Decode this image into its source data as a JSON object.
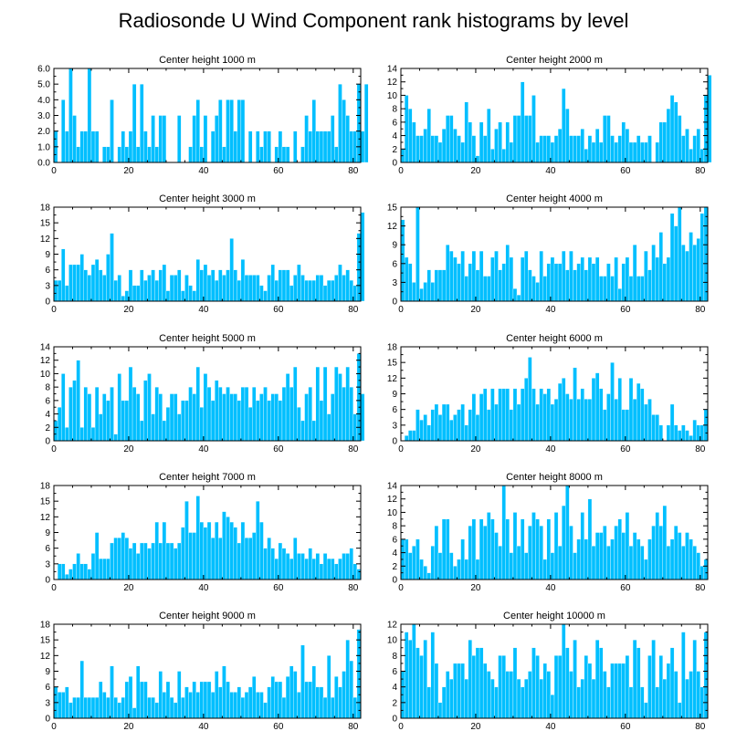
{
  "title": "Radiosonde U Wind Component rank histograms by level",
  "colors": {
    "bar": "#00bfff",
    "axis": "#000000",
    "background": "#ffffff"
  },
  "chart_data": [
    {
      "type": "bar",
      "title": "Center height 1000 m",
      "xlim": [
        0,
        82
      ],
      "ylim": [
        0,
        6
      ],
      "xticks": [
        "0",
        "20",
        "40",
        "60",
        "80"
      ],
      "yticks": [
        "0.0",
        "1.0",
        "2.0",
        "3.0",
        "4.0",
        "5.0",
        "6.0"
      ],
      "x_start": 0,
      "values": [
        2,
        0,
        4,
        2,
        6,
        3,
        1,
        2,
        2,
        6,
        2,
        2,
        0,
        1,
        1,
        4,
        0,
        1,
        2,
        1,
        2,
        5,
        1,
        5,
        2,
        1,
        3,
        1,
        3,
        3,
        0,
        0,
        0,
        3,
        0,
        0,
        1,
        3,
        4,
        1,
        3,
        0,
        2,
        3,
        4,
        1,
        4,
        4,
        2,
        4,
        4,
        0,
        2,
        0,
        2,
        1,
        2,
        2,
        0,
        1,
        2,
        1,
        1,
        0,
        2,
        0,
        1,
        3,
        2,
        4,
        2,
        2,
        2,
        2,
        3,
        1,
        5,
        4,
        3,
        2,
        2,
        5,
        2,
        5
      ]
    },
    {
      "type": "bar",
      "title": "Center height 2000 m",
      "xlim": [
        0,
        82
      ],
      "ylim": [
        0,
        14
      ],
      "xticks": [
        "0",
        "20",
        "40",
        "60",
        "80"
      ],
      "yticks": [
        "0",
        "2",
        "4",
        "6",
        "8",
        "10",
        "12",
        "14"
      ],
      "x_start": 0,
      "values": [
        2,
        10,
        8,
        6,
        4,
        4,
        5,
        8,
        4,
        4,
        3,
        5,
        7,
        7,
        5,
        4,
        3,
        9,
        6,
        4,
        1,
        6,
        4,
        8,
        2,
        5,
        6,
        2,
        6,
        3,
        7,
        7,
        12,
        7,
        7,
        10,
        3,
        4,
        4,
        4,
        3,
        4,
        5,
        11,
        8,
        4,
        4,
        4,
        5,
        2,
        4,
        3,
        5,
        3,
        7,
        7,
        4,
        3,
        4,
        6,
        5,
        3,
        3,
        4,
        3,
        3,
        4,
        0,
        3,
        6,
        6,
        8,
        10,
        9,
        7,
        4,
        5,
        2,
        4,
        5,
        2,
        10,
        13
      ]
    },
    {
      "type": "bar",
      "title": "Center height 3000 m",
      "xlim": [
        0,
        82
      ],
      "ylim": [
        0,
        18
      ],
      "xticks": [
        "0",
        "20",
        "40",
        "60",
        "80"
      ],
      "yticks": [
        "0",
        "3",
        "6",
        "9",
        "12",
        "15",
        "18"
      ],
      "x_start": 0,
      "values": [
        4,
        4,
        10,
        3,
        7,
        7,
        7,
        9,
        6,
        5,
        7,
        8,
        6,
        5,
        9,
        13,
        4,
        5,
        1,
        2,
        6,
        3,
        3,
        6,
        4,
        5,
        6,
        4,
        6,
        7,
        2,
        5,
        5,
        6,
        2,
        5,
        3,
        2,
        8,
        6,
        7,
        5,
        6,
        4,
        6,
        5,
        6,
        12,
        6,
        4,
        8,
        5,
        5,
        5,
        5,
        3,
        2,
        5,
        7,
        4,
        6,
        6,
        6,
        3,
        5,
        7,
        5,
        4,
        4,
        4,
        5,
        5,
        3,
        4,
        4,
        5,
        7,
        5,
        6,
        4,
        3,
        13,
        17
      ]
    },
    {
      "type": "bar",
      "title": "Center height 4000 m",
      "xlim": [
        0,
        82
      ],
      "ylim": [
        0,
        15
      ],
      "xticks": [
        "0",
        "20",
        "40",
        "60",
        "80"
      ],
      "yticks": [
        "0",
        "3",
        "6",
        "9",
        "12",
        "15"
      ],
      "x_start": 0,
      "values": [
        13,
        7,
        6,
        3,
        15,
        2,
        3,
        5,
        3,
        5,
        5,
        5,
        9,
        8,
        7,
        6,
        8,
        4,
        6,
        8,
        5,
        8,
        4,
        4,
        7,
        8,
        5,
        6,
        9,
        7,
        2,
        1,
        7,
        8,
        5,
        4,
        3,
        8,
        4,
        6,
        7,
        6,
        6,
        8,
        5,
        8,
        5,
        6,
        7,
        5,
        7,
        6,
        7,
        4,
        4,
        6,
        4,
        7,
        2,
        6,
        7,
        4,
        9,
        4,
        4,
        8,
        5,
        9,
        7,
        11,
        6,
        7,
        14,
        12,
        15,
        9,
        8,
        11,
        9,
        10,
        14,
        15
      ]
    },
    {
      "type": "bar",
      "title": "Center height 5000 m",
      "xlim": [
        0,
        82
      ],
      "ylim": [
        0,
        14
      ],
      "xticks": [
        "0",
        "20",
        "40",
        "60",
        "80"
      ],
      "yticks": [
        "0",
        "2",
        "4",
        "6",
        "8",
        "10",
        "12",
        "14"
      ],
      "x_start": 0,
      "values": [
        3,
        5,
        10,
        2,
        8,
        9,
        12,
        2,
        8,
        7,
        2,
        8,
        4,
        7,
        6,
        8,
        1,
        10,
        6,
        6,
        11,
        8,
        7,
        3,
        9,
        10,
        4,
        8,
        7,
        3,
        5,
        7,
        7,
        4,
        6,
        6,
        8,
        7,
        11,
        5,
        10,
        8,
        6,
        9,
        8,
        7,
        8,
        7,
        7,
        6,
        8,
        8,
        5,
        8,
        6,
        7,
        8,
        6,
        7,
        7,
        6,
        8,
        10,
        8,
        11,
        5,
        3,
        7,
        8,
        3,
        11,
        6,
        11,
        4,
        7,
        11,
        10,
        8,
        11,
        8,
        4,
        13,
        7
      ]
    },
    {
      "type": "bar",
      "title": "Center height 6000 m",
      "xlim": [
        0,
        82
      ],
      "ylim": [
        0,
        18
      ],
      "xticks": [
        "0",
        "20",
        "40",
        "60",
        "80"
      ],
      "yticks": [
        "0",
        "3",
        "6",
        "9",
        "12",
        "15",
        "18"
      ],
      "x_start": 0,
      "values": [
        0,
        1,
        2,
        2,
        6,
        4,
        5,
        3,
        6,
        7,
        5,
        7,
        7,
        4,
        5,
        6,
        7,
        3,
        6,
        9,
        5,
        9,
        10,
        6,
        10,
        7,
        10,
        10,
        10,
        6,
        10,
        7,
        10,
        12,
        16,
        10,
        7,
        10,
        9,
        10,
        7,
        8,
        11,
        12,
        9,
        8,
        14,
        8,
        10,
        8,
        8,
        12,
        13,
        10,
        6,
        9,
        15,
        8,
        12,
        6,
        6,
        12,
        8,
        11,
        10,
        7,
        8,
        5,
        5,
        3,
        0,
        3,
        7,
        3,
        2,
        3,
        2,
        1,
        4,
        3,
        3,
        6
      ]
    },
    {
      "type": "bar",
      "title": "Center height 7000 m",
      "xlim": [
        0,
        82
      ],
      "ylim": [
        0,
        18
      ],
      "xticks": [
        "0",
        "20",
        "40",
        "60",
        "80"
      ],
      "yticks": [
        "0",
        "3",
        "6",
        "9",
        "12",
        "15",
        "18"
      ],
      "x_start": 0,
      "values": [
        0,
        3,
        3,
        1,
        2,
        3,
        5,
        3,
        3,
        2,
        5,
        9,
        4,
        4,
        4,
        7,
        8,
        8,
        9,
        8,
        6,
        7,
        5,
        7,
        7,
        6,
        7,
        11,
        7,
        11,
        7,
        7,
        6,
        7,
        10,
        15,
        9,
        9,
        16,
        11,
        10,
        11,
        8,
        11,
        8,
        13,
        12,
        11,
        10,
        7,
        11,
        8,
        8,
        9,
        15,
        11,
        6,
        8,
        6,
        4,
        7,
        6,
        5,
        4,
        8,
        5,
        5,
        4,
        6,
        4,
        5,
        3,
        5,
        4,
        4,
        3,
        4,
        5,
        5,
        6,
        3,
        2
      ]
    },
    {
      "type": "bar",
      "title": "Center height 8000 m",
      "xlim": [
        0,
        82
      ],
      "ylim": [
        0,
        14
      ],
      "xticks": [
        "0",
        "20",
        "40",
        "60",
        "80"
      ],
      "yticks": [
        "0",
        "2",
        "4",
        "6",
        "8",
        "10",
        "12",
        "14"
      ],
      "x_start": 0,
      "values": [
        6,
        6,
        4,
        5,
        6,
        3,
        2,
        1,
        5,
        8,
        4,
        9,
        9,
        4,
        2,
        3,
        6,
        3,
        8,
        9,
        3,
        9,
        8,
        10,
        9,
        7,
        5,
        14,
        9,
        4,
        10,
        5,
        9,
        4,
        8,
        10,
        9,
        8,
        3,
        9,
        4,
        10,
        5,
        11,
        14,
        8,
        4,
        6,
        10,
        6,
        12,
        5,
        7,
        7,
        8,
        5,
        6,
        8,
        9,
        7,
        10,
        5,
        7,
        6,
        5,
        3,
        6,
        8,
        10,
        8,
        11,
        5,
        6,
        8,
        7,
        5,
        7,
        6,
        5,
        4,
        2,
        3
      ]
    },
    {
      "type": "bar",
      "title": "Center height 9000 m",
      "xlim": [
        0,
        82
      ],
      "ylim": [
        0,
        18
      ],
      "xticks": [
        "0",
        "20",
        "40",
        "60",
        "80"
      ],
      "yticks": [
        "0",
        "3",
        "6",
        "9",
        "12",
        "15",
        "18"
      ],
      "x_start": 0,
      "values": [
        6,
        5,
        5,
        6,
        3,
        4,
        4,
        11,
        4,
        4,
        4,
        4,
        7,
        5,
        4,
        10,
        4,
        3,
        4,
        7,
        8,
        2,
        10,
        7,
        7,
        4,
        4,
        3,
        9,
        5,
        7,
        4,
        3,
        9,
        4,
        6,
        5,
        7,
        5,
        7,
        7,
        7,
        5,
        9,
        6,
        10,
        7,
        5,
        5,
        6,
        4,
        5,
        6,
        8,
        5,
        5,
        3,
        6,
        8,
        7,
        7,
        4,
        8,
        10,
        9,
        5,
        14,
        7,
        7,
        10,
        6,
        6,
        4,
        12,
        4,
        8,
        6,
        9,
        15,
        11,
        4,
        17
      ]
    },
    {
      "type": "bar",
      "title": "Center height 10000 m",
      "xlim": [
        0,
        82
      ],
      "ylim": [
        0,
        12
      ],
      "xticks": [
        "0",
        "20",
        "40",
        "60",
        "80"
      ],
      "yticks": [
        "0",
        "2",
        "4",
        "6",
        "8",
        "10",
        "12"
      ],
      "x_start": 0,
      "values": [
        6,
        11,
        10,
        12,
        9,
        8,
        10,
        4,
        11,
        7,
        2,
        4,
        6,
        5,
        7,
        7,
        7,
        5,
        10,
        8,
        9,
        9,
        7,
        6,
        5,
        4,
        8,
        8,
        6,
        6,
        9,
        5,
        4,
        5,
        6,
        9,
        8,
        5,
        7,
        6,
        3,
        8,
        8,
        12,
        9,
        6,
        10,
        4,
        5,
        8,
        7,
        5,
        10,
        9,
        6,
        4,
        7,
        7,
        7,
        7,
        8,
        4,
        10,
        9,
        4,
        2,
        8,
        10,
        4,
        8,
        5,
        7,
        9,
        6,
        2,
        11,
        5,
        6,
        10,
        6,
        4,
        11
      ]
    }
  ]
}
